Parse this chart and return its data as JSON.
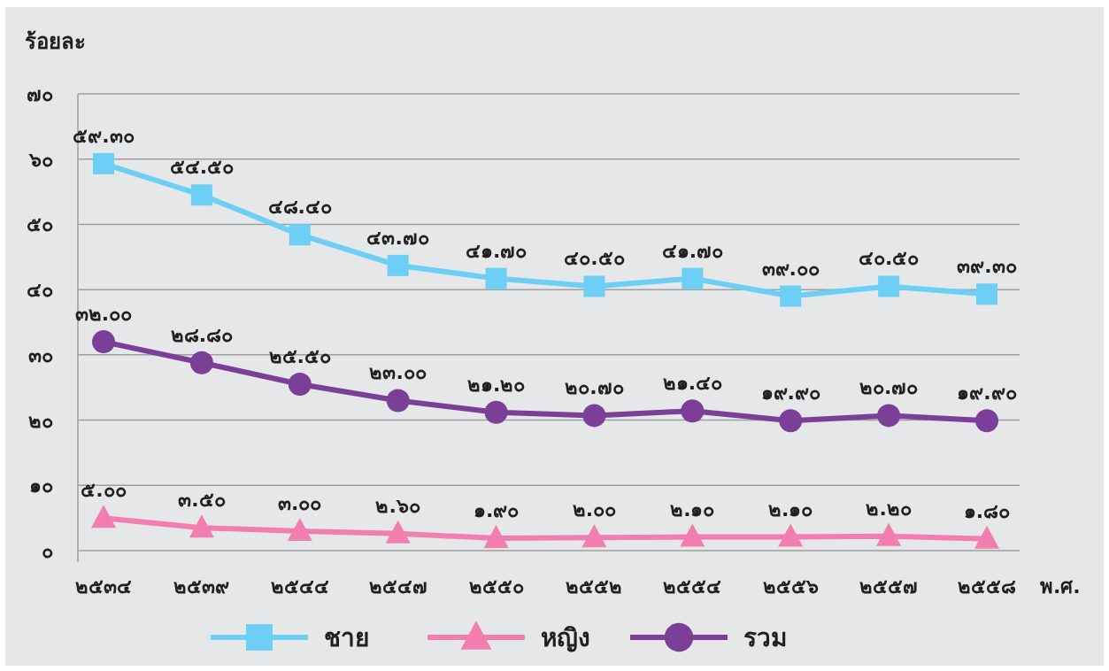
{
  "chart_data": {
    "type": "line",
    "ylabel": "ร้อยละ",
    "xlabel": "พ.ศ.",
    "categories": [
      "๒๕๓๔",
      "๒๕๓๙",
      "๒๕๔๔",
      "๒๕๔๗",
      "๒๕๕๐",
      "๒๕๕๒",
      "๒๕๕๔",
      "๒๕๕๖",
      "๒๕๕๗",
      "๒๕๕๘"
    ],
    "series": [
      {
        "name": "ชาย",
        "color": "#6dcff6",
        "marker": "square",
        "values": [
          59.3,
          54.5,
          48.4,
          43.7,
          41.7,
          40.5,
          41.7,
          39.0,
          40.5,
          39.3
        ],
        "value_labels": [
          "๕๙.๓๐",
          "๕๔.๕๐",
          "๔๘.๔๐",
          "๔๓.๗๐",
          "๔๑.๗๐",
          "๔๐.๕๐",
          "๔๑.๗๐",
          "๓๙.๐๐",
          "๔๐.๕๐",
          "๓๙.๓๐"
        ]
      },
      {
        "name": "หญิง",
        "color": "#f27eb0",
        "marker": "triangle",
        "values": [
          5.0,
          3.5,
          3.0,
          2.6,
          1.9,
          2.0,
          2.1,
          2.1,
          2.2,
          1.8
        ],
        "value_labels": [
          "๕.๐๐",
          "๓.๕๐",
          "๓.๐๐",
          "๒.๖๐",
          "๑.๙๐",
          "๒.๐๐",
          "๒.๑๐",
          "๒.๑๐",
          "๒.๒๐",
          "๑.๘๐"
        ]
      },
      {
        "name": "รวม",
        "color": "#7b3f98",
        "marker": "circle",
        "values": [
          32.0,
          28.8,
          25.5,
          23.0,
          21.2,
          20.7,
          21.4,
          19.9,
          20.7,
          19.9
        ],
        "value_labels": [
          "๓๒.๐๐",
          "๒๘.๘๐",
          "๒๕.๕๐",
          "๒๓.๐๐",
          "๒๑.๒๐",
          "๒๐.๗๐",
          "๒๑.๔๐",
          "๑๙.๙๐",
          "๒๐.๗๐",
          "๑๙.๙๐"
        ]
      }
    ],
    "ylim": [
      0,
      70
    ],
    "yticks": [
      {
        "value": 0,
        "label": "๐"
      },
      {
        "value": 10,
        "label": "๑๐"
      },
      {
        "value": 20,
        "label": "๒๐"
      },
      {
        "value": 30,
        "label": "๓๐"
      },
      {
        "value": 40,
        "label": "๔๐"
      },
      {
        "value": 50,
        "label": "๕๐"
      },
      {
        "value": 60,
        "label": "๖๐"
      },
      {
        "value": 70,
        "label": "๗๐"
      }
    ],
    "grid": "y",
    "legend": "bottom",
    "line_style": "solid"
  }
}
